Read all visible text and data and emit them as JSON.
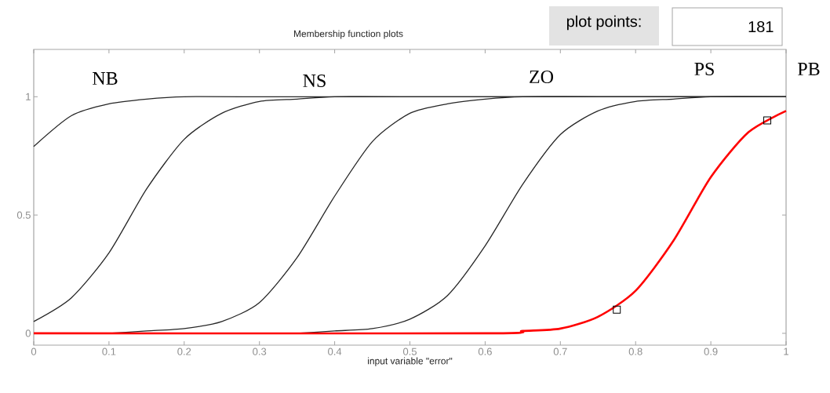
{
  "chart_data": {
    "type": "line",
    "title": "Membership function plots",
    "xlabel": "input variable \"error\"",
    "xlim": [
      0,
      1
    ],
    "ylim": [
      -0.05,
      1.2
    ],
    "xticks": [
      0,
      0.1,
      0.2,
      0.3,
      0.4,
      0.5,
      0.6,
      0.7,
      0.8,
      0.9,
      1
    ],
    "yticks": [
      0,
      0.5,
      1
    ],
    "grid": false,
    "marker": "none",
    "line_style": "solid",
    "series": [
      {
        "color": "#262626",
        "x": [
          0,
          0.05,
          0.1,
          0.15,
          0.2,
          0.3,
          1
        ],
        "values": [
          0.79,
          0.92,
          0.97,
          0.99,
          1.0,
          1.0,
          1.0
        ]
      },
      {
        "color": "#262626",
        "x": [
          0,
          0.05,
          0.1,
          0.15,
          0.2,
          0.25,
          0.3,
          0.35,
          0.4,
          0.5,
          1
        ],
        "values": [
          0.05,
          0.15,
          0.34,
          0.61,
          0.82,
          0.93,
          0.98,
          0.99,
          1.0,
          1.0,
          1.0
        ]
      },
      {
        "color": "#262626",
        "x": [
          0.1,
          0.15,
          0.2,
          0.25,
          0.3,
          0.35,
          0.4,
          0.45,
          0.5,
          0.55,
          0.6,
          0.65,
          0.75,
          1
        ],
        "values": [
          0.0,
          0.01,
          0.02,
          0.05,
          0.13,
          0.32,
          0.58,
          0.81,
          0.93,
          0.97,
          0.99,
          1.0,
          1.0,
          1.0
        ]
      },
      {
        "color": "#262626",
        "x": [
          0.35,
          0.4,
          0.45,
          0.5,
          0.55,
          0.6,
          0.65,
          0.7,
          0.75,
          0.8,
          0.85,
          0.9,
          1
        ],
        "values": [
          0.0,
          0.01,
          0.02,
          0.06,
          0.16,
          0.37,
          0.63,
          0.84,
          0.94,
          0.98,
          0.99,
          1.0,
          1.0
        ]
      },
      {
        "color": "#ff0000",
        "x": [
          0,
          0.6,
          0.65,
          0.7,
          0.75,
          0.8,
          0.85,
          0.9,
          0.95,
          1
        ],
        "values": [
          0.0,
          0.0,
          0.01,
          0.02,
          0.07,
          0.18,
          0.39,
          0.66,
          0.85,
          0.94
        ]
      },
      {
        "type": "scatter",
        "marker": "square",
        "color": "#000000",
        "x": [
          0.775,
          0.975
        ],
        "values": [
          0.1,
          0.9
        ]
      }
    ],
    "annotations": [
      "NB",
      "NS",
      "ZO",
      "PS",
      "PB",
      "plot points:",
      "181"
    ]
  }
}
